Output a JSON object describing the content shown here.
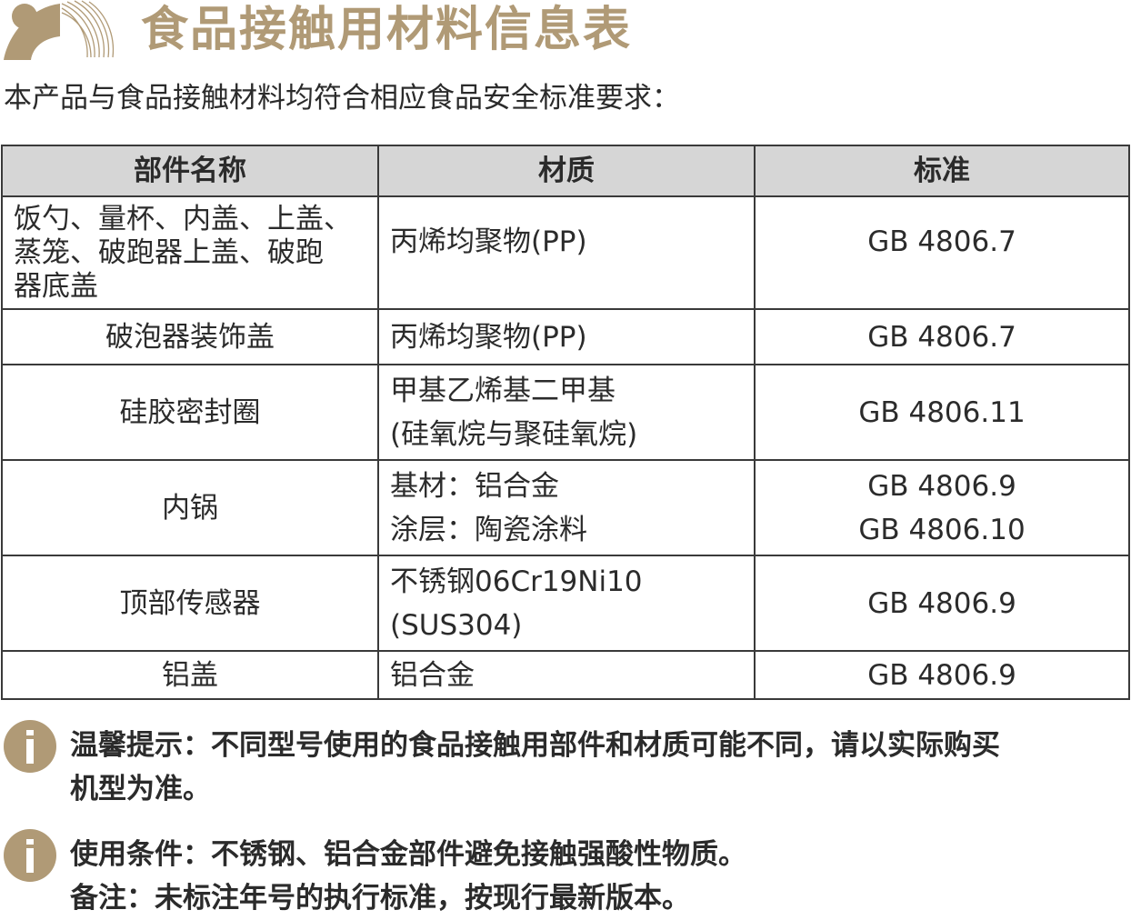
{
  "header": {
    "title": "食品接触用材料信息表",
    "logo": "brand-logo"
  },
  "intro": "本产品与食品接触材料均符合相应食品安全标准要求：",
  "table": {
    "columns": [
      "部件名称",
      "材质",
      "标准"
    ],
    "rows": [
      {
        "part": [
          "饭勺、量杯、内盖、上盖、",
          "蒸笼、破跑器上盖、破跑",
          "器底盖"
        ],
        "material": [
          "丙烯均聚物(PP)"
        ],
        "standard": [
          "GB 4806.7"
        ]
      },
      {
        "part": [
          "破泡器装饰盖"
        ],
        "material": [
          "丙烯均聚物(PP)"
        ],
        "standard": [
          "GB 4806.7"
        ]
      },
      {
        "part": [
          "硅胶密封圈"
        ],
        "material": [
          "甲基乙烯基二甲基",
          "(硅氧烷与聚硅氧烷)"
        ],
        "standard": [
          "GB 4806.11"
        ]
      },
      {
        "part": [
          "内锅"
        ],
        "material": [
          "基材：铝合金",
          "涂层：陶瓷涂料"
        ],
        "standard": [
          "GB 4806.9",
          "GB 4806.10"
        ]
      },
      {
        "part": [
          "顶部传感器"
        ],
        "material": [
          "不锈钢06Cr19Ni10",
          "(SUS304)"
        ],
        "standard": [
          "GB 4806.9"
        ]
      },
      {
        "part": [
          "铝盖"
        ],
        "material": [
          "铝合金"
        ],
        "standard": [
          "GB 4806.9"
        ]
      }
    ]
  },
  "notes": [
    {
      "icon": "info-icon",
      "lines": [
        "温馨提示：不同型号使用的食品接触用部件和材质可能不同，请以实际购买",
        "机型为准。"
      ]
    },
    {
      "icon": "info-icon",
      "lines": [
        "使用条件：不锈钢、铝合金部件避免接触强酸性物质。",
        "备注：未标注年号的执行标准，按现行最新版本。"
      ]
    }
  ],
  "colors": {
    "accent": "#b09a76",
    "header_bg": "#d6d6d6",
    "text": "#2b2b2b"
  }
}
